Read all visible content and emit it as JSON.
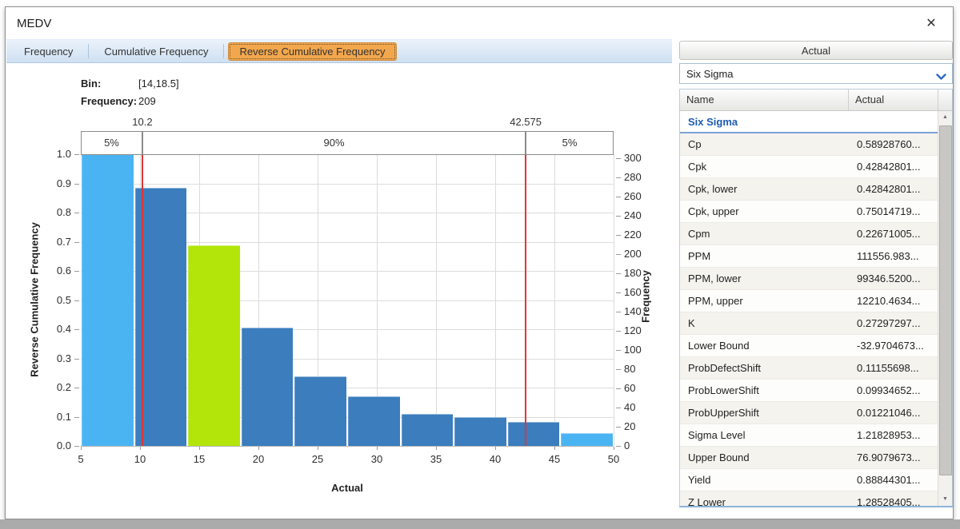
{
  "window": {
    "title": "MEDV",
    "close_glyph": "✕"
  },
  "tabs": [
    {
      "id": "frequency",
      "label": "Frequency",
      "selected": false
    },
    {
      "id": "cumulative-frequency",
      "label": "Cumulative Frequency",
      "selected": false
    },
    {
      "id": "reverse-cumulative-frequency",
      "label": "Reverse Cumulative Frequency",
      "selected": true
    }
  ],
  "bin_info": {
    "bin_label": "Bin:",
    "bin_value": "[14,18.5]",
    "freq_label": "Frequency:",
    "freq_value": "209"
  },
  "chart_data": {
    "type": "bar",
    "subtype": "reverse-cumulative-histogram",
    "title": "",
    "xlabel": "Actual",
    "ylabel_left": "Reverse Cumulative Frequency",
    "ylabel_right": "Frequency",
    "x_range": [
      5,
      50
    ],
    "left_range": [
      0,
      1
    ],
    "x_ticks": [
      5,
      10,
      15,
      20,
      25,
      30,
      35,
      40,
      45,
      50
    ],
    "left_ticks": [
      0.0,
      0.1,
      0.2,
      0.3,
      0.4,
      0.5,
      0.6,
      0.7,
      0.8,
      0.9,
      1.0
    ],
    "right_ticks": [
      0,
      20,
      40,
      60,
      80,
      100,
      120,
      140,
      160,
      180,
      200,
      220,
      240,
      260,
      280,
      300
    ],
    "right_axis_total": 304,
    "grid": true,
    "bins": [
      {
        "range": [
          5,
          9.5
        ],
        "rcf": 1.0,
        "count": 304,
        "color": "bar_light",
        "selected": false
      },
      {
        "range": [
          9.5,
          14
        ],
        "rcf": 0.885,
        "count": 269,
        "color": "bar_steel",
        "selected": false
      },
      {
        "range": [
          14,
          18.5
        ],
        "rcf": 0.688,
        "count": 209,
        "color": "bar_selected",
        "selected": true
      },
      {
        "range": [
          18.5,
          23
        ],
        "rcf": 0.405,
        "count": 123,
        "color": "bar_steel",
        "selected": false
      },
      {
        "range": [
          23,
          27.5
        ],
        "rcf": 0.237,
        "count": 72,
        "color": "bar_steel",
        "selected": false
      },
      {
        "range": [
          27.5,
          32
        ],
        "rcf": 0.171,
        "count": 52,
        "color": "bar_steel",
        "selected": false
      },
      {
        "range": [
          32,
          36.5
        ],
        "rcf": 0.109,
        "count": 33,
        "color": "bar_steel",
        "selected": false
      },
      {
        "range": [
          36.5,
          41
        ],
        "rcf": 0.099,
        "count": 30,
        "color": "bar_steel",
        "selected": false
      },
      {
        "range": [
          41,
          45.5
        ],
        "rcf": 0.082,
        "count": 25,
        "color": "bar_steel",
        "selected": false
      },
      {
        "range": [
          45.5,
          50
        ],
        "rcf": 0.044,
        "count": 13,
        "color": "bar_light",
        "selected": false
      }
    ],
    "markers": [
      {
        "value": 10.2,
        "label": "10.2"
      },
      {
        "value": 42.575,
        "label": "42.575"
      }
    ],
    "bands": [
      {
        "label": "5%",
        "from": 5,
        "to": 10.2
      },
      {
        "label": "90%",
        "from": 10.2,
        "to": 42.575
      },
      {
        "label": "5%",
        "from": 42.575,
        "to": 50
      }
    ],
    "colors": {
      "bar_light": "#4ab4f2",
      "bar_steel": "#3b7dbd",
      "bar_selected": "#b3e50a",
      "marker_line": "#e23434"
    }
  },
  "panel": {
    "header": "Actual",
    "dropdown": {
      "value": "Six Sigma"
    },
    "table": {
      "columns": [
        "Name",
        "Actual"
      ],
      "group_header": "Six Sigma",
      "rows": [
        {
          "name": "Cp",
          "value": "0.58928760..."
        },
        {
          "name": "Cpk",
          "value": "0.42842801..."
        },
        {
          "name": "Cpk, lower",
          "value": "0.42842801..."
        },
        {
          "name": "Cpk, upper",
          "value": "0.75014719..."
        },
        {
          "name": "Cpm",
          "value": "0.22671005..."
        },
        {
          "name": "PPM",
          "value": "111556.983..."
        },
        {
          "name": "PPM, lower",
          "value": "99346.5200..."
        },
        {
          "name": "PPM, upper",
          "value": "12210.4634..."
        },
        {
          "name": "K",
          "value": "0.27297297..."
        },
        {
          "name": "Lower Bound",
          "value": "-32.9704673..."
        },
        {
          "name": "ProbDefectShift",
          "value": "0.11155698..."
        },
        {
          "name": "ProbLowerShift",
          "value": "0.09934652..."
        },
        {
          "name": "ProbUpperShift",
          "value": "0.01221046..."
        },
        {
          "name": "Sigma Level",
          "value": "1.21828953..."
        },
        {
          "name": "Upper Bound",
          "value": "76.9079673..."
        },
        {
          "name": "Yield",
          "value": "0.88844301..."
        },
        {
          "name": "Z Lower",
          "value": "1.28528405..."
        }
      ]
    }
  }
}
